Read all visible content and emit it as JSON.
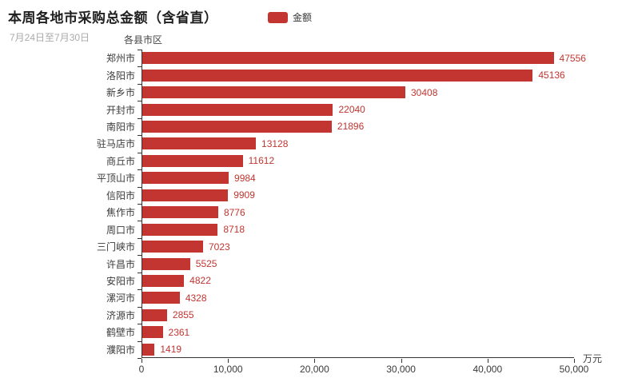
{
  "header": {
    "title": "本周各地市采购总金额（含省直）",
    "subtitle": "7月24日至7月30日"
  },
  "legend": {
    "items": [
      {
        "label": "金额",
        "color": "#c23531"
      }
    ]
  },
  "chart_data": {
    "type": "bar",
    "orientation": "horizontal",
    "title": "本周各地市采购总金额（含省直）",
    "subtitle": "7月24日至7月30日",
    "series_name": "金额",
    "y_axis_name": "各县市区",
    "x_axis_unit": "万元",
    "categories": [
      "郑州市",
      "洛阳市",
      "新乡市",
      "开封市",
      "南阳市",
      "驻马店市",
      "商丘市",
      "平顶山市",
      "信阳市",
      "焦作市",
      "周口市",
      "三门峡市",
      "许昌市",
      "安阳市",
      "漯河市",
      "济源市",
      "鹤壁市",
      "濮阳市"
    ],
    "values": [
      47556,
      45136,
      30408,
      22040,
      21896,
      13128,
      11612,
      9984,
      9909,
      8776,
      8718,
      7023,
      5525,
      4822,
      4328,
      2855,
      2361,
      1419
    ],
    "xlim": [
      0,
      50000
    ],
    "x_ticks": [
      0,
      10000,
      20000,
      30000,
      40000,
      50000
    ],
    "x_tick_labels": [
      "0",
      "10,000",
      "20,000",
      "30,000",
      "40,000",
      "50,000"
    ],
    "bar_color": "#c23531",
    "value_label_color": "#c23531",
    "grid": false,
    "legend_position": "top-center"
  }
}
